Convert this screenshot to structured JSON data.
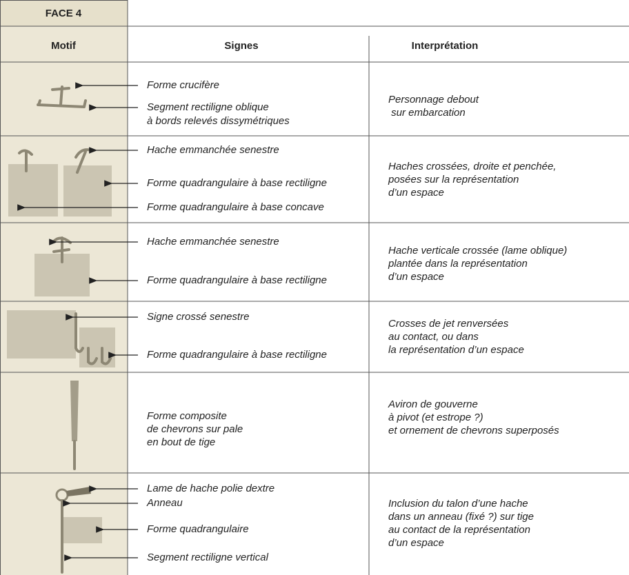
{
  "header": {
    "title": "FACE 4"
  },
  "table": {
    "columns": [
      "Motif",
      "Signes",
      "Interprétation"
    ],
    "rows": [
      {
        "signs": [
          "Forme crucifère",
          "Segment rectiligne oblique",
          "à bords relevés dissymétriques"
        ],
        "interpretation": [
          "Personnage debout",
          " sur embarcation"
        ]
      },
      {
        "signs": [
          "Hache emmanchée senestre",
          "Forme quadrangulaire à base rectiligne",
          "Forme quadrangulaire à base concave"
        ],
        "interpretation": [
          "Haches crossées, droite et penchée,",
          "posées sur la représentation",
          "d’un espace"
        ]
      },
      {
        "signs": [
          "Hache emmanchée senestre",
          "Forme quadrangulaire à base rectiligne"
        ],
        "interpretation": [
          "Hache verticale crossée (lame oblique)",
          "plantée dans la représentation",
          "d’un espace"
        ]
      },
      {
        "signs": [
          "Signe crossé senestre",
          "Forme quadrangulaire à base rectiligne"
        ],
        "interpretation": [
          "Crosses de jet renversées",
          "au contact, ou dans",
          "la représentation d’un espace"
        ]
      },
      {
        "signs": [
          "Forme composite",
          "de chevrons sur pale",
          "en bout de tige"
        ],
        "interpretation": [
          "Aviron de gouverne",
          "à pivot (et estrope ?)",
          "et ornement de chevrons superposés"
        ]
      },
      {
        "signs": [
          "Lame de hache polie dextre",
          "Anneau",
          "Forme quadrangulaire",
          "Segment rectiligne vertical"
        ],
        "interpretation": [
          "Inclusion du talon d’une hache",
          "dans un anneau (fixé ?) sur tige",
          "au contact de la représentation",
          "d’un espace"
        ]
      }
    ]
  }
}
